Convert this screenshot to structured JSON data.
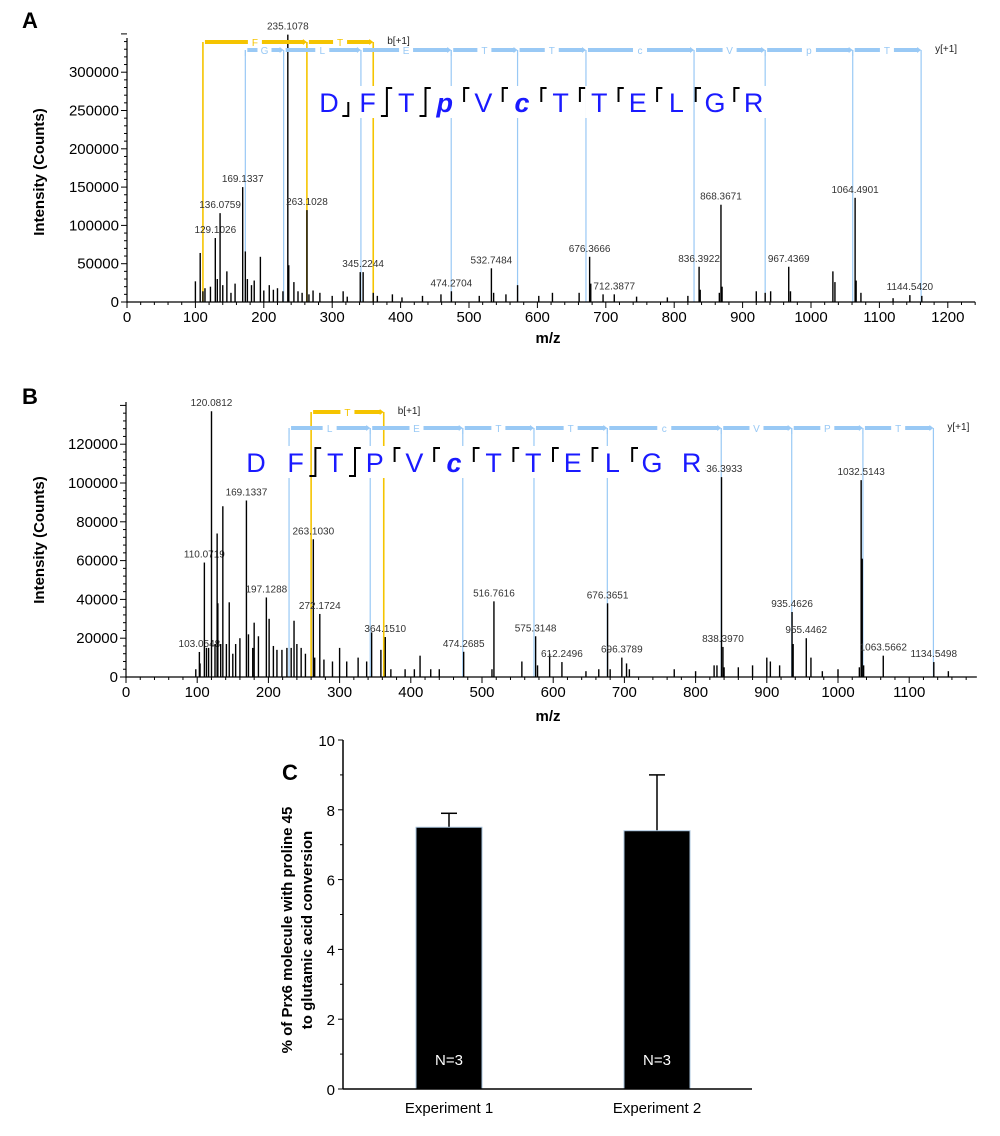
{
  "colors": {
    "b_ion": "#f5c400",
    "y_ion": "#99c9f5",
    "sequence": "#1a1aff",
    "peak": "#000000",
    "bar": "#000000"
  },
  "chart_data": [
    {
      "panel": "A",
      "type": "bar",
      "xlabel": "m/z",
      "ylabel": "Intensity (Counts)",
      "xlim": [
        0,
        1240
      ],
      "ylim": [
        0,
        350000
      ],
      "xticks": [
        0,
        100,
        200,
        300,
        400,
        500,
        600,
        700,
        800,
        900,
        1000,
        1100,
        1200
      ],
      "yticks": [
        0,
        50000,
        100000,
        150000,
        200000,
        250000,
        300000
      ],
      "sequence": {
        "residues": [
          "D",
          "F",
          "T",
          "p",
          "V",
          "c",
          "T",
          "T",
          "E",
          "L",
          "G",
          "R"
        ],
        "modified": [
          false,
          false,
          false,
          true,
          false,
          true,
          false,
          false,
          false,
          false,
          false,
          false
        ],
        "breaks": [
          "b",
          "by",
          "by",
          "y",
          "y",
          "y",
          "y",
          "y",
          "y",
          "y",
          "y"
        ]
      },
      "b_ladder": {
        "label": "b[+1]",
        "boundaries": [
          111,
          263,
          360
        ],
        "segments": [
          "F",
          "T"
        ]
      },
      "y_ladder": {
        "label": "y[+1]",
        "boundaries": [
          173,
          229,
          342,
          474,
          571,
          671,
          829,
          933,
          1061,
          1161
        ],
        "segments": [
          "G",
          "L",
          "E",
          "T",
          "T",
          "c",
          "V",
          "p",
          "T"
        ]
      },
      "peaks": [
        [
          100,
          27000
        ],
        [
          107,
          64000
        ],
        [
          111,
          14000
        ],
        [
          114,
          18000
        ],
        [
          122,
          20000
        ],
        [
          129.1026,
          83500,
          "129.1026"
        ],
        [
          132,
          30000
        ],
        [
          136.0759,
          116000,
          "136.0759"
        ],
        [
          140,
          22000
        ],
        [
          146,
          40000
        ],
        [
          152,
          12000
        ],
        [
          158,
          24000
        ],
        [
          169.1337,
          150000,
          "169.1337"
        ],
        [
          173,
          66000
        ],
        [
          176,
          30000
        ],
        [
          182,
          22000
        ],
        [
          186,
          28000
        ],
        [
          195,
          59000
        ],
        [
          200,
          15000
        ],
        [
          208,
          22000
        ],
        [
          214,
          16000
        ],
        [
          220,
          18000
        ],
        [
          228,
          14000
        ],
        [
          235.1078,
          349000,
          "235.1078"
        ],
        [
          236.5,
          48000
        ],
        [
          244,
          26000
        ],
        [
          250,
          14000
        ],
        [
          256,
          12000
        ],
        [
          263.1028,
          120000,
          "263.1028"
        ],
        [
          266,
          10000
        ],
        [
          272,
          15000
        ],
        [
          282,
          12000
        ],
        [
          300,
          8000
        ],
        [
          316,
          14000
        ],
        [
          322,
          7000
        ],
        [
          341,
          39000
        ],
        [
          345.2244,
          39000,
          "345.2244"
        ],
        [
          360,
          12000
        ],
        [
          366,
          8000
        ],
        [
          388,
          10000
        ],
        [
          402,
          6000
        ],
        [
          432,
          8000
        ],
        [
          459,
          10000
        ],
        [
          474.2704,
          14000,
          "474.2704"
        ],
        [
          515,
          8000
        ],
        [
          532.7484,
          44000,
          "532.7484"
        ],
        [
          536,
          12000
        ],
        [
          554,
          10000
        ],
        [
          571,
          22000
        ],
        [
          602,
          8000
        ],
        [
          622,
          12000
        ],
        [
          661,
          12000
        ],
        [
          676.3666,
          59000,
          "676.3666"
        ],
        [
          678,
          24000
        ],
        [
          696,
          10000
        ],
        [
          712.3877,
          10000,
          "712.3877"
        ],
        [
          745,
          7000
        ],
        [
          790,
          6000
        ],
        [
          820,
          8000
        ],
        [
          836.3922,
          46000,
          "836.3922"
        ],
        [
          838,
          16000
        ],
        [
          866,
          12000
        ],
        [
          868.3671,
          127000,
          "868.3671"
        ],
        [
          870,
          20000
        ],
        [
          920,
          14000
        ],
        [
          933,
          12000
        ],
        [
          941,
          14000
        ],
        [
          967.4369,
          46000,
          "967.4369"
        ],
        [
          970,
          14000
        ],
        [
          1032,
          40000
        ],
        [
          1035,
          26000
        ],
        [
          1064.4901,
          136000,
          "1064.4901"
        ],
        [
          1066,
          28000
        ],
        [
          1073,
          12000
        ],
        [
          1120,
          5000
        ],
        [
          1144.542,
          9000,
          "1144.5420"
        ],
        [
          1162,
          8000
        ]
      ]
    },
    {
      "panel": "B",
      "type": "bar",
      "xlabel": "m/z",
      "ylabel": "Intensity (Counts)",
      "xlim": [
        0,
        1195
      ],
      "ylim": [
        0,
        140000
      ],
      "xticks": [
        0,
        100,
        200,
        300,
        400,
        500,
        600,
        700,
        800,
        900,
        1000,
        1100
      ],
      "yticks": [
        0,
        20000,
        40000,
        60000,
        80000,
        100000,
        120000
      ],
      "sequence": {
        "residues": [
          "D",
          "F",
          "T",
          "P",
          "V",
          "c",
          "T",
          "T",
          "E",
          "L",
          "G",
          "R"
        ],
        "modified": [
          false,
          false,
          false,
          false,
          false,
          true,
          false,
          false,
          false,
          false,
          false,
          false
        ],
        "breaks": [
          "",
          "by",
          "by",
          "y",
          "y",
          "y",
          "y",
          "y",
          "y",
          "y",
          ""
        ]
      },
      "b_ladder": {
        "label": "b[+1]",
        "boundaries": [
          260,
          362
        ],
        "segments": [
          "T"
        ]
      },
      "y_ladder": {
        "label": "y[+1]",
        "boundaries": [
          229,
          343,
          473,
          573,
          676,
          836,
          935,
          1035,
          1134
        ],
        "segments": [
          "L",
          "E",
          "T",
          "T",
          "c",
          "V",
          "P",
          "T"
        ]
      },
      "peaks": [
        [
          98,
          4000
        ],
        [
          103.0548,
          12900,
          "103.0548"
        ],
        [
          104,
          7000
        ],
        [
          110.0719,
          59000,
          "110.0719"
        ],
        [
          113,
          15000
        ],
        [
          116,
          15000
        ],
        [
          120.0812,
          137000,
          "120.0812"
        ],
        [
          125,
          17000
        ],
        [
          128,
          74000
        ],
        [
          129,
          38000
        ],
        [
          133,
          17000
        ],
        [
          136,
          88000
        ],
        [
          141,
          17000
        ],
        [
          145,
          38500
        ],
        [
          150,
          12000
        ],
        [
          154,
          17000
        ],
        [
          160,
          20000
        ],
        [
          169.1337,
          91000,
          "169.1337"
        ],
        [
          172,
          22000
        ],
        [
          178,
          15000
        ],
        [
          180,
          28000
        ],
        [
          186,
          21000
        ],
        [
          197.1288,
          41000,
          "197.1288"
        ],
        [
          201,
          30000
        ],
        [
          207,
          16000
        ],
        [
          212,
          14000
        ],
        [
          219,
          14000
        ],
        [
          226,
          15000
        ],
        [
          232,
          15000
        ],
        [
          236,
          29000
        ],
        [
          240,
          17000
        ],
        [
          246,
          15000
        ],
        [
          252,
          12000
        ],
        [
          263.103,
          71000,
          "263.1030"
        ],
        [
          265,
          10000
        ],
        [
          272.1724,
          32500,
          "272.1724"
        ],
        [
          278,
          9000
        ],
        [
          290,
          8000
        ],
        [
          300,
          15000
        ],
        [
          310,
          8000
        ],
        [
          326,
          10000
        ],
        [
          338,
          8000
        ],
        [
          345,
          23000
        ],
        [
          358,
          14000
        ],
        [
          364.151,
          20600,
          "364.1510"
        ],
        [
          372,
          4000
        ],
        [
          392,
          4000
        ],
        [
          405,
          4000
        ],
        [
          413,
          11000
        ],
        [
          428,
          4000
        ],
        [
          440,
          4000
        ],
        [
          474.2685,
          13000,
          "474.2685"
        ],
        [
          514,
          4000
        ],
        [
          516.7616,
          39000,
          "516.7616"
        ],
        [
          556,
          8000
        ],
        [
          575.3148,
          21000,
          "575.3148"
        ],
        [
          578,
          6000
        ],
        [
          595,
          12000
        ],
        [
          612.2496,
          7700,
          "612.2496"
        ],
        [
          646,
          3000
        ],
        [
          664,
          4000
        ],
        [
          676.3651,
          38000,
          "676.3651"
        ],
        [
          680,
          4000
        ],
        [
          696.3789,
          10000,
          "696.3789"
        ],
        [
          703,
          7000
        ],
        [
          707,
          4000
        ],
        [
          770,
          4000
        ],
        [
          800,
          3000
        ],
        [
          826,
          6000
        ],
        [
          830,
          6000
        ],
        [
          836.3933,
          103000,
          "836.3933"
        ],
        [
          838.397,
          15500,
          "838.3970"
        ],
        [
          840,
          5000
        ],
        [
          860,
          5000
        ],
        [
          880,
          6000
        ],
        [
          900,
          10000
        ],
        [
          905,
          8000
        ],
        [
          918,
          6000
        ],
        [
          935.4626,
          33500,
          "935.4626"
        ],
        [
          937,
          17000
        ],
        [
          955.4462,
          20000,
          "955.4462"
        ],
        [
          962,
          10000
        ],
        [
          978,
          3000
        ],
        [
          1000,
          4000
        ],
        [
          1030,
          5000
        ],
        [
          1032.5143,
          101500,
          "1032.5143"
        ],
        [
          1034,
          61000
        ],
        [
          1036,
          6000
        ],
        [
          1063.5662,
          11000,
          "1063.5662"
        ],
        [
          1134.5498,
          7700,
          "1134.5498"
        ],
        [
          1155,
          3000
        ]
      ]
    },
    {
      "panel": "C",
      "type": "bar",
      "categories": [
        "Experiment 1",
        "Experiment 2"
      ],
      "values": [
        7.5,
        7.4
      ],
      "errors": [
        0.4,
        1.6
      ],
      "bar_labels": [
        "N=3",
        "N=3"
      ],
      "ylabel": [
        "% of Prx6 molecule with proline 45",
        "to glutamic acid conversion"
      ],
      "xlabel": "",
      "ylim": [
        0,
        10
      ],
      "yticks": [
        0,
        2,
        4,
        6,
        8,
        10
      ]
    }
  ]
}
